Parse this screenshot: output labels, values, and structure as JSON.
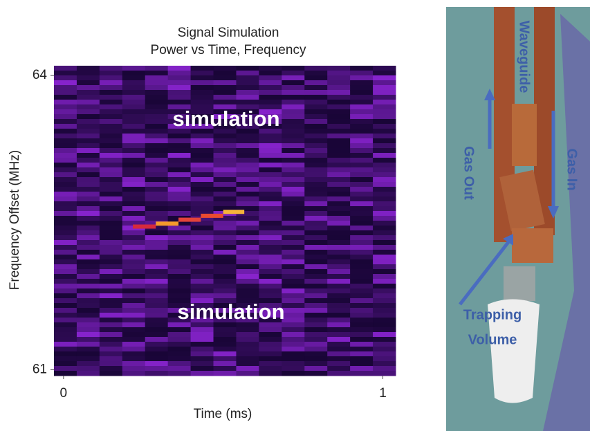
{
  "chart_data": {
    "type": "heatmap",
    "title": [
      "Signal Simulation",
      "Power vs Time, Frequency"
    ],
    "xlabel": "Time (ms)",
    "ylabel": "Frequency Offset (MHz)",
    "xlim": [
      -0.03,
      1.04
    ],
    "xticks": [
      0,
      1
    ],
    "ylim": [
      60.94,
      64.1
    ],
    "yticks": [
      64,
      61
    ],
    "annotations": [
      "simulation",
      "simulation"
    ],
    "x_edges": [
      0.217,
      0.289,
      0.36,
      0.43,
      0.5,
      0.566
    ],
    "values": [
      62.46,
      62.49,
      62.53,
      62.57,
      62.61
    ],
    "colors": [
      "#d62a3c",
      "#f59a2c",
      "#e4433a",
      "#ea4a30",
      "#f6b43a"
    ]
  },
  "photo": {
    "labels": [
      "Waveguide",
      "Gas Out",
      "Gas In",
      "Trapping",
      "Volume"
    ]
  }
}
